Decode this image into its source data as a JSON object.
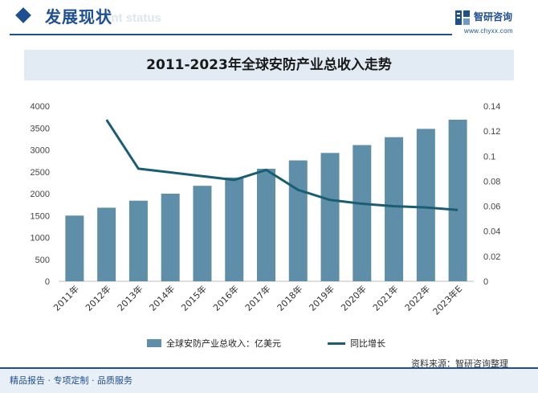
{
  "header": {
    "title": "发展现状",
    "subtitle": "ent status"
  },
  "brand": {
    "name": "智研咨询",
    "url": "www.chyxx.com",
    "color": "#1d4f91"
  },
  "source": "资料来源：智研咨询整理",
  "footer": "精品报告 · 专项定制 · 品质服务",
  "chart_data": {
    "type": "bar",
    "title": "2011-2023年全球安防产业总收入走势",
    "categories": [
      "2011年",
      "2012年",
      "2013年",
      "2014年",
      "2015年",
      "2016年",
      "2017年",
      "2018年",
      "2019年",
      "2020年",
      "2021年",
      "2022年",
      "2023年E"
    ],
    "y_left": {
      "range": [
        0,
        4000
      ],
      "ticks": [
        "0",
        "500",
        "1000",
        "1500",
        "2000",
        "2500",
        "3000",
        "3500",
        "4000"
      ]
    },
    "y_right": {
      "range": [
        0,
        0.14
      ],
      "ticks": [
        "0",
        "0.02",
        "0.04",
        "0.06",
        "0.08",
        "0.1",
        "0.12",
        "0.14"
      ]
    },
    "grid": false,
    "legend_position": "bottom",
    "series": [
      {
        "name": "全球安防产业总收入：亿美元",
        "type": "bar",
        "axis": "left",
        "color": "#5f8fa8",
        "values": [
          1500,
          1680,
          1840,
          2000,
          2180,
          2370,
          2570,
          2760,
          2930,
          3110,
          3290,
          3480,
          3690
        ]
      },
      {
        "name": "同比增长",
        "type": "line",
        "axis": "right",
        "color": "#1a5e74",
        "values": [
          null,
          0.129,
          0.09,
          0.087,
          0.084,
          0.081,
          0.089,
          0.073,
          0.065,
          0.062,
          0.06,
          0.059,
          0.057
        ]
      }
    ]
  }
}
